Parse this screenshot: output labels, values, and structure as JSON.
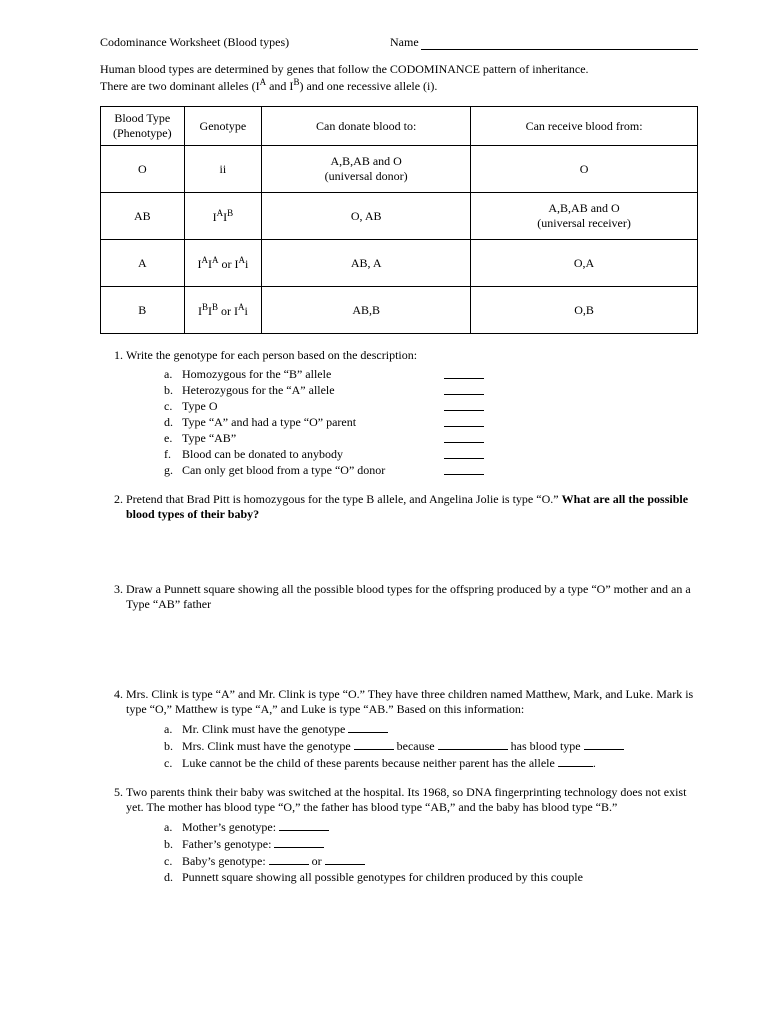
{
  "header": {
    "title": "Codominance Worksheet (Blood types)",
    "name_label": "Name"
  },
  "intro": {
    "line1": "Human blood types are determined by genes that follow the CODOMINANCE pattern of inheritance.",
    "line2_a": "There are two dominant alleles (I",
    "line2_b": " and I",
    "line2_c": ") and one recessive allele (i)."
  },
  "table": {
    "headers": [
      "Blood Type (Phenotype)",
      "Genotype",
      "Can donate blood to:",
      "Can receive blood from:"
    ],
    "col_widths": [
      "14%",
      "13%",
      "35%",
      "38%"
    ],
    "rows": [
      {
        "pheno": "O",
        "geno_html": "ii",
        "donate": "A,B,AB and O",
        "donate_sub": "(universal donor)",
        "receive": "O",
        "receive_sub": ""
      },
      {
        "pheno": "AB",
        "geno_html": "I<sup>A</sup>I<sup>B</sup>",
        "donate": "O, AB",
        "donate_sub": "",
        "receive": "A,B,AB and O",
        "receive_sub": "(universal receiver)"
      },
      {
        "pheno": "A",
        "geno_html": "I<sup>A</sup>I<sup>A</sup> or  I<sup>A</sup>i",
        "donate": "AB, A",
        "donate_sub": "",
        "receive": "O,A",
        "receive_sub": ""
      },
      {
        "pheno": "B",
        "geno_html": "I<sup>B</sup>I<sup>B</sup> or  I<sup>A</sup>i",
        "donate": "AB,B",
        "donate_sub": "",
        "receive": "O,B",
        "receive_sub": ""
      }
    ]
  },
  "questions": {
    "q1": {
      "prompt": "Write the genotype for each person based on the description:",
      "items": [
        {
          "l": "a.",
          "t": "Homozygous for the “B” allele"
        },
        {
          "l": "b.",
          "t": "Heterozygous for the “A” allele"
        },
        {
          "l": "c.",
          "t": "Type O"
        },
        {
          "l": "d.",
          "t": "Type “A” and had a type “O” parent"
        },
        {
          "l": "e.",
          "t": "Type “AB”"
        },
        {
          "l": "f.",
          "t": "Blood can be donated to anybody"
        },
        {
          "l": "g.",
          "t": "Can only get blood from a type “O” donor"
        }
      ]
    },
    "q2": {
      "a": "Pretend that Brad Pitt is homozygous for the type B allele, and Angelina Jolie is type “O.” ",
      "b": "What are all the possible blood types of their baby?"
    },
    "q3": "Draw a Punnett square showing all the possible blood types for the offspring produced by a type “O” mother and an a Type “AB” father",
    "q4": {
      "prompt": "Mrs. Clink is type “A” and Mr. Clink is type “O.” They have three children named Matthew, Mark, and Luke. Mark is type “O,” Matthew is type “A,” and Luke is type “AB.” Based on this information:",
      "a_l": "a.",
      "a_t": "Mr. Clink must have the genotype ",
      "b_l": "b.",
      "b_1": "Mrs. Clink must have the genotype ",
      "b_2": " because ",
      "b_3": " has blood type ",
      "c_l": "c.",
      "c_t": "Luke cannot be the child of these parents because neither parent has the allele "
    },
    "q5": {
      "prompt": "Two parents think their baby was switched at the hospital. Its 1968, so DNA fingerprinting technology does not exist yet. The mother has blood type “O,” the father has blood type “AB,” and the baby has blood type “B.”",
      "a_l": "a.",
      "a_t": "Mother’s genotype: ",
      "b_l": "b.",
      "b_t": "Father’s genotype: ",
      "c_l": "c.",
      "c_1": "Baby’s genotype: ",
      "c_2": " or ",
      "d_l": "d.",
      "d_t": "Punnett square showing all possible genotypes for children produced by this couple"
    }
  }
}
